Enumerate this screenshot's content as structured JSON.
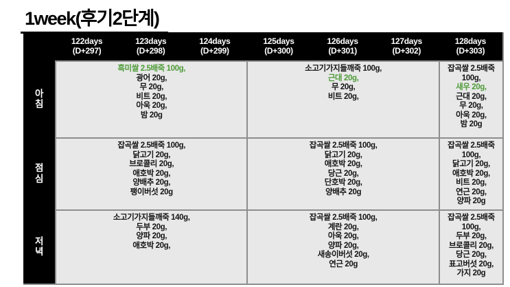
{
  "title": "1week(후기2단계)",
  "colors": {
    "highlight_green": "#4e9b38",
    "header_bg": "#000000",
    "cell_bg": "#e8e8e8",
    "grid_line": "#8d8d8d"
  },
  "table": {
    "day_headers": [
      {
        "days": "122days",
        "dday": "(D+297)"
      },
      {
        "days": "123days",
        "dday": "(D+298)"
      },
      {
        "days": "124days",
        "dday": "(D+299)"
      },
      {
        "days": "125days",
        "dday": "(D+300)"
      },
      {
        "days": "126days",
        "dday": "(D+301)"
      },
      {
        "days": "127days",
        "dday": "(D+302)"
      },
      {
        "days": "128days",
        "dday": "(D+303)"
      }
    ],
    "meal_rows": [
      {
        "id": "breakfast",
        "label": "아침",
        "cells": [
          {
            "span": 3,
            "lines": [
              {
                "text": "흑미쌀 2.5배죽 100g,",
                "green": true
              },
              {
                "text": "광어 20g,"
              },
              {
                "text": "무 20g,"
              },
              {
                "text": "비트 20g,"
              },
              {
                "text": "아욱 20g,"
              },
              {
                "text": "밤 20g"
              }
            ]
          },
          {
            "span": 3,
            "lines": [
              {
                "text": "소고기가지들깨죽 100g,"
              },
              {
                "text": "근대 20g,",
                "green": true
              },
              {
                "text": "무 20g,"
              },
              {
                "text": "비트 20g,"
              }
            ]
          },
          {
            "span": 1,
            "lines": [
              {
                "text": "잡곡쌀 2.5배죽 100g,"
              },
              {
                "text": "새우 20g,",
                "green": true
              },
              {
                "text": "근대 20g,"
              },
              {
                "text": "무 20g,"
              },
              {
                "text": "아욱 20g,"
              },
              {
                "text": "밤 20g"
              }
            ]
          }
        ]
      },
      {
        "id": "lunch",
        "label": "점심",
        "cells": [
          {
            "span": 3,
            "lines": [
              {
                "text": "잡곡쌀 2.5배죽 100g,"
              },
              {
                "text": "닭고기 20g,"
              },
              {
                "text": "브로콜리 20g,"
              },
              {
                "text": "애호박 20g,"
              },
              {
                "text": "양배추 20g,"
              },
              {
                "text": "팽이버섯 20g"
              }
            ]
          },
          {
            "span": 3,
            "lines": [
              {
                "text": "잡곡쌀 2.5배죽 100g,"
              },
              {
                "text": "닭고기 20g,"
              },
              {
                "text": "애호박 20g,"
              },
              {
                "text": "당근 20g,"
              },
              {
                "text": "단호박 20g,"
              },
              {
                "text": "양배추 20g"
              }
            ]
          },
          {
            "span": 1,
            "lines": [
              {
                "text": "잡곡쌀 2.5배죽 100g,"
              },
              {
                "text": "닭고기 20g,"
              },
              {
                "text": "애호박 20g,"
              },
              {
                "text": "비트 20g,"
              },
              {
                "text": "연근 20g,"
              },
              {
                "text": "양파 20g"
              }
            ]
          }
        ]
      },
      {
        "id": "dinner",
        "label": "저녁",
        "cells": [
          {
            "span": 3,
            "lines": [
              {
                "text": "소고기가지들깨죽 140g,"
              },
              {
                "text": "두부 20g,"
              },
              {
                "text": "양파 20g,"
              },
              {
                "text": "애호박 20g,"
              }
            ]
          },
          {
            "span": 3,
            "lines": [
              {
                "text": "잡곡쌀 2.5배죽 100g,"
              },
              {
                "text": "계란 20g,"
              },
              {
                "text": "아욱 20g,"
              },
              {
                "text": "양파 20g,"
              },
              {
                "text": "새송이버섯 20g,"
              },
              {
                "text": "연근 20g"
              }
            ]
          },
          {
            "span": 1,
            "lines": [
              {
                "text": "잡곡쌀 2.5배죽 100g,"
              },
              {
                "text": "두부 20g,"
              },
              {
                "text": "브로콜리 20g,"
              },
              {
                "text": "당근 20g,"
              },
              {
                "text": "표고버섯 20g,"
              },
              {
                "text": "가지 20g"
              }
            ]
          }
        ]
      }
    ]
  }
}
